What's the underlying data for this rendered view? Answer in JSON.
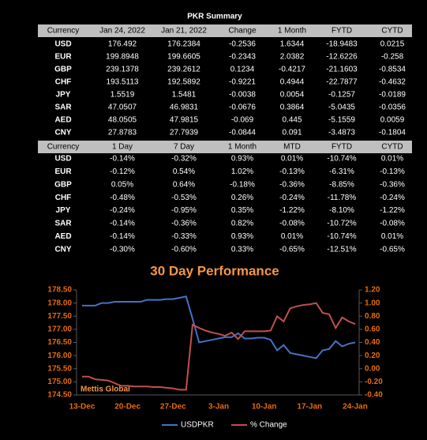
{
  "title": "PKR Summary",
  "tables": [
    {
      "header": [
        "Currency",
        "Jan 24, 2022",
        "Jan 21, 2022",
        "Change",
        "1 Month",
        "FYTD",
        "CYTD"
      ],
      "rows": [
        [
          "USD",
          "176.492",
          "176.2384",
          "-0.2536",
          "1.6344",
          "-18.9483",
          "0.0215"
        ],
        [
          "EUR",
          "199.8948",
          "199.6605",
          "-0.2343",
          "2.0382",
          "-12.6226",
          "-0.258"
        ],
        [
          "GBP",
          "239.1378",
          "239.2612",
          "0.1234",
          "-0.4217",
          "-21.1603",
          "-0.8534"
        ],
        [
          "CHF",
          "193.5113",
          "192.5892",
          "-0.9221",
          "0.4944",
          "-22.7877",
          "-0.4632"
        ],
        [
          "JPY",
          "1.5519",
          "1.5481",
          "-0.0038",
          "0.0054",
          "-0.1257",
          "-0.0189"
        ],
        [
          "SAR",
          "47.0507",
          "46.9831",
          "-0.0676",
          "0.3864",
          "-5.0435",
          "-0.0356"
        ],
        [
          "AED",
          "48.0505",
          "47.9815",
          "-0.069",
          "0.445",
          "-5.1559",
          "0.0059"
        ],
        [
          "CNY",
          "27.8783",
          "27.7939",
          "-0.0844",
          "0.091",
          "-3.4873",
          "-0.1804"
        ]
      ]
    },
    {
      "header": [
        "Currency",
        "1 Day",
        "7 Day",
        "1 Month",
        "MTD",
        "FYTD",
        "CYTD"
      ],
      "rows": [
        [
          "USD",
          "-0.14%",
          "-0.32%",
          "0.93%",
          "0.01%",
          "-10.74%",
          "0.01%"
        ],
        [
          "EUR",
          "-0.12%",
          "0.54%",
          "1.02%",
          "-0.13%",
          "-6.31%",
          "-0.13%"
        ],
        [
          "GBP",
          "0.05%",
          "0.64%",
          "-0.18%",
          "-0.36%",
          "-8.85%",
          "-0.36%"
        ],
        [
          "CHF",
          "-0.48%",
          "-0.53%",
          "0.26%",
          "-0.24%",
          "-11.78%",
          "-0.24%"
        ],
        [
          "JPY",
          "-0.24%",
          "-0.95%",
          "0.35%",
          "-1.22%",
          "-8.10%",
          "-1.22%"
        ],
        [
          "SAR",
          "-0.14%",
          "-0.36%",
          "0.82%",
          "-0.08%",
          "-10.72%",
          "-0.08%"
        ],
        [
          "AED",
          "-0.14%",
          "-0.33%",
          "0.93%",
          "0.01%",
          "-10.74%",
          "0.01%"
        ],
        [
          "CNY",
          "-0.30%",
          "-0.60%",
          "0.33%",
          "-0.65%",
          "-12.51%",
          "-0.65%"
        ]
      ]
    }
  ],
  "chart_data": {
    "type": "line",
    "title": "30 Day Performance",
    "annotation": "Mettis Global",
    "categories": [
      "13-Dec",
      null,
      null,
      null,
      null,
      null,
      null,
      "20-Dec",
      null,
      null,
      null,
      null,
      null,
      null,
      "27-Dec",
      null,
      null,
      null,
      null,
      null,
      null,
      "3-Jan",
      null,
      null,
      null,
      null,
      null,
      null,
      "10-Jan",
      null,
      null,
      null,
      null,
      null,
      null,
      "17-Jan",
      null,
      null,
      null,
      null,
      null,
      null,
      "24-Jan"
    ],
    "series": [
      {
        "name": "USDPKR",
        "color": "#4472c4",
        "values": [
          177.9,
          177.9,
          177.9,
          178.0,
          178.0,
          178.05,
          178.05,
          178.05,
          178.05,
          178.05,
          178.12,
          178.12,
          178.12,
          178.15,
          178.15,
          178.2,
          178.25,
          177.4,
          176.5,
          176.55,
          176.6,
          176.65,
          176.7,
          176.7,
          176.85,
          176.65,
          176.65,
          176.68,
          176.68,
          176.6,
          176.2,
          176.4,
          176.1,
          176.05,
          176.0,
          175.95,
          175.9,
          176.2,
          176.25,
          176.55,
          176.35,
          176.45,
          176.5
        ]
      },
      {
        "name": "% Change",
        "color": "#c0504d",
        "axis": "y2",
        "values": [
          -0.12,
          -0.12,
          -0.16,
          -0.17,
          -0.18,
          -0.22,
          -0.26,
          -0.26,
          -0.27,
          -0.27,
          -0.27,
          -0.28,
          -0.28,
          -0.29,
          -0.3,
          -0.32,
          -0.32,
          0.67,
          0.62,
          0.58,
          0.55,
          0.53,
          0.5,
          0.55,
          0.45,
          0.57,
          0.57,
          0.57,
          0.57,
          0.58,
          0.8,
          0.72,
          0.92,
          0.95,
          0.97,
          0.98,
          1.0,
          0.85,
          0.83,
          0.62,
          0.78,
          0.72,
          0.68
        ]
      }
    ],
    "ylim": [
      174.5,
      178.5
    ],
    "yticks": [
      {
        "value": 174.5,
        "label": "174.50"
      },
      {
        "value": 175,
        "label": "175.00"
      },
      {
        "value": 175.5,
        "label": "175.50"
      },
      {
        "value": 176,
        "label": "176.00"
      },
      {
        "value": 176.5,
        "label": "176.50"
      },
      {
        "value": 177,
        "label": "177.00"
      },
      {
        "value": 177.5,
        "label": "177.50"
      },
      {
        "value": 178,
        "label": "178.00"
      },
      {
        "value": 178.5,
        "label": "178.50"
      }
    ],
    "y2lim": [
      -0.4,
      1.2
    ],
    "y2ticks": [
      {
        "value": -0.4,
        "label": "-0.40"
      },
      {
        "value": -0.2,
        "label": "-0.20"
      },
      {
        "value": 0,
        "label": "0.00"
      },
      {
        "value": 0.2,
        "label": "0.20"
      },
      {
        "value": 0.4,
        "label": "0.40"
      },
      {
        "value": 0.6,
        "label": "0.60"
      },
      {
        "value": 0.8,
        "label": "0.80"
      },
      {
        "value": 1,
        "label": "1.00"
      },
      {
        "value": 1.2,
        "label": "1.20"
      }
    ],
    "legend": "bottom"
  }
}
